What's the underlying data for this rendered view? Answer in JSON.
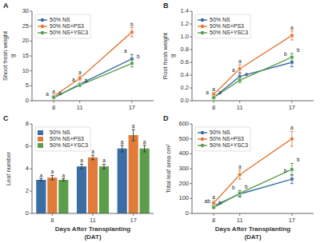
{
  "chart_data": [
    {
      "type": "line",
      "title": "A",
      "x": [
        8,
        11,
        17
      ],
      "xlim": [
        5.5,
        19.5
      ],
      "xticks": [
        8,
        11,
        17
      ],
      "ylabel": "Shoot fresh weight\ng",
      "ylim": [
        0,
        30
      ],
      "yticks": [
        0,
        5,
        10,
        15,
        20,
        25,
        30
      ],
      "grid": false,
      "legend": "upper left",
      "series": [
        {
          "name": "50% NS",
          "values": [
            1.0,
            5.5,
            14.0
          ],
          "errors": [
            0.2,
            0.5,
            1.5
          ],
          "annotations": [
            "a",
            "a",
            "a"
          ]
        },
        {
          "name": "50% NS+PS3",
          "values": [
            1.5,
            7.5,
            23.0
          ],
          "errors": [
            0.3,
            0.8,
            1.5
          ],
          "annotations": [
            "a",
            "a",
            "b"
          ]
        },
        {
          "name": "50% NS+YSC3",
          "values": [
            1.2,
            5.2,
            12.5
          ],
          "errors": [
            0.2,
            0.5,
            1.2
          ],
          "annotations": [
            "a",
            "b",
            "b"
          ]
        }
      ]
    },
    {
      "type": "line",
      "title": "B",
      "x": [
        8,
        11,
        17
      ],
      "xlim": [
        5.5,
        19.5
      ],
      "xticks": [
        8,
        11,
        17
      ],
      "ylabel": "Root fresh weight\ng",
      "ylim": [
        0,
        1.4
      ],
      "yticks": [
        {
          "value": 0,
          "label": "0.0"
        },
        0.2,
        0.4,
        0.6,
        0.8,
        {
          "value": 1,
          "label": "1.0"
        },
        1.2,
        1.4
      ],
      "grid": false,
      "legend": "upper left",
      "series": [
        {
          "name": "50% NS",
          "values": [
            0.05,
            0.38,
            0.6
          ],
          "errors": [
            0.02,
            0.05,
            0.07
          ],
          "annotations": [
            "a",
            "a",
            "b"
          ]
        },
        {
          "name": "50% NS+PS3",
          "values": [
            0.1,
            0.5,
            1.02
          ],
          "errors": [
            0.03,
            0.06,
            0.07
          ],
          "annotations": [
            "a",
            "a",
            "a"
          ]
        },
        {
          "name": "50% NS+YSC3",
          "values": [
            0.05,
            0.32,
            0.68
          ],
          "errors": [
            0.02,
            0.04,
            0.06
          ],
          "annotations": [
            "a",
            "a",
            "b"
          ]
        }
      ]
    },
    {
      "type": "bar",
      "title": "C",
      "categories": [
        "8",
        "11",
        "17"
      ],
      "xlabel": "Days After Transplanting\n(DAT)",
      "ylabel": "Leaf number",
      "ylim": [
        0,
        8
      ],
      "yticks": [
        0,
        2,
        4,
        6,
        8
      ],
      "grid": false,
      "legend": "upper left",
      "series": [
        {
          "name": "50% NS",
          "values": [
            3.0,
            4.2,
            5.8
          ],
          "errors": [
            0.1,
            0.2,
            0.3
          ],
          "annotations": [
            "a",
            "a",
            "a"
          ]
        },
        {
          "name": "50% NS+PS3",
          "values": [
            3.2,
            5.0,
            7.0
          ],
          "errors": [
            0.2,
            0.2,
            0.5
          ],
          "annotations": [
            "a",
            "a",
            "a"
          ]
        },
        {
          "name": "50% NS+YSC3",
          "values": [
            3.0,
            4.2,
            5.8
          ],
          "errors": [
            0.1,
            0.2,
            0.3
          ],
          "annotations": [
            "a",
            "a",
            "a"
          ]
        }
      ]
    },
    {
      "type": "line",
      "title": "D",
      "x": [
        8,
        11,
        17
      ],
      "xlim": [
        5.5,
        19.5
      ],
      "xticks": [
        8,
        11,
        17
      ],
      "xlabel": "Days After Transplanting\n(DAT)",
      "ylabel": "Total leaf area cm²",
      "ylim": [
        0,
        600
      ],
      "yticks": [
        0,
        100,
        200,
        300,
        400,
        500,
        600
      ],
      "grid": false,
      "legend": "upper left",
      "series": [
        {
          "name": "50% NS",
          "values": [
            50,
            130,
            230
          ],
          "errors": [
            10,
            20,
            30
          ],
          "annotations": [
            "ab",
            "b",
            "b"
          ]
        },
        {
          "name": "50% NS+PS3",
          "values": [
            70,
            260,
            500
          ],
          "errors": [
            15,
            30,
            50
          ],
          "annotations": [
            "a",
            "a",
            "a"
          ]
        },
        {
          "name": "50% NS+YSC3",
          "values": [
            40,
            135,
            295
          ],
          "errors": [
            8,
            20,
            40
          ],
          "annotations": [
            "b",
            "b",
            "b"
          ]
        }
      ]
    }
  ]
}
